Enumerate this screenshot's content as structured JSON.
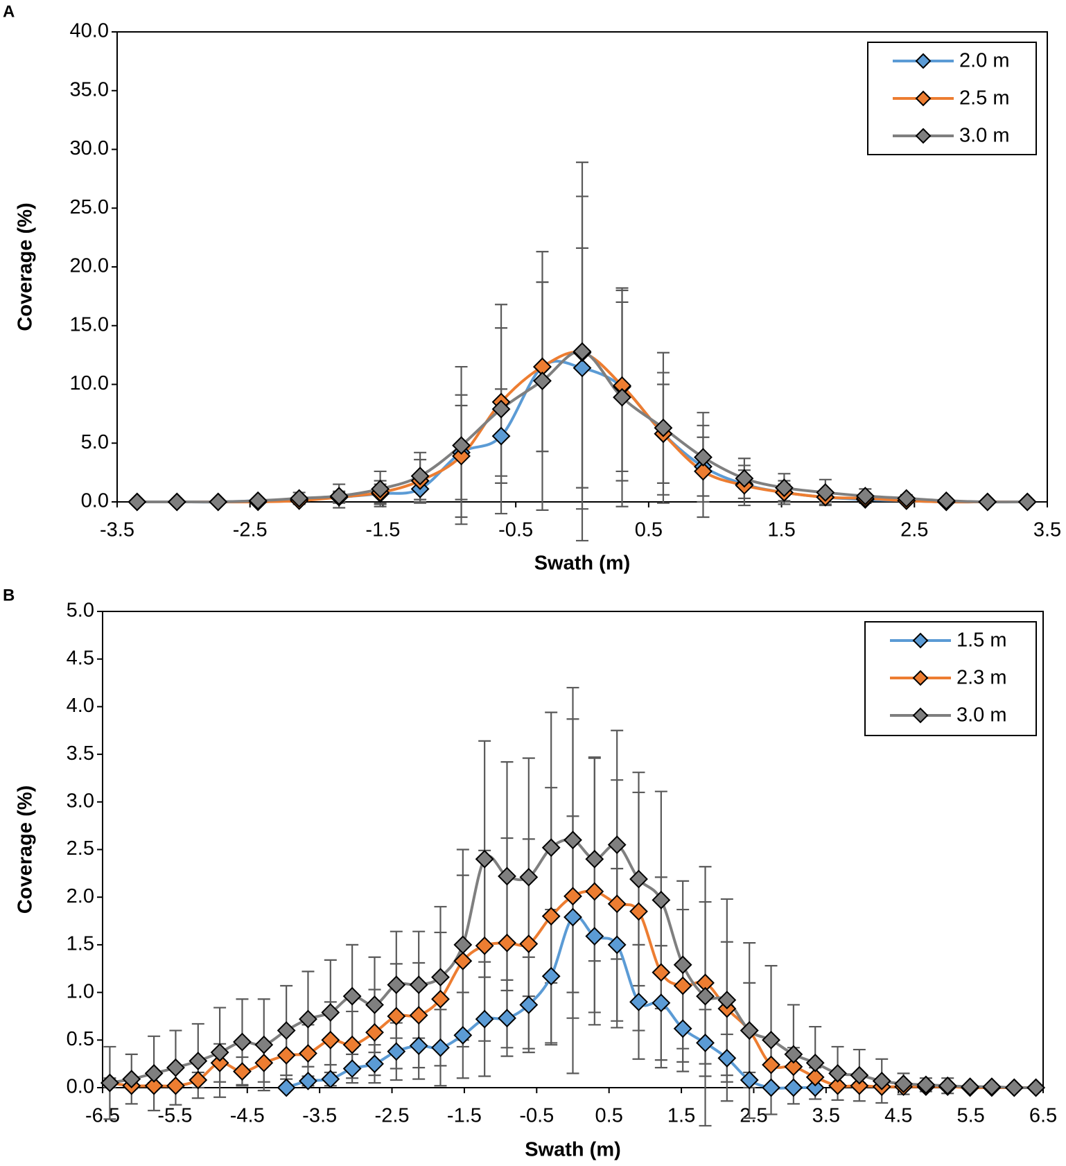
{
  "chart_data": [
    {
      "type": "line",
      "panel_label": "A",
      "xlabel": "Swath (m)",
      "ylabel": "Coverage (%)",
      "smooth": true,
      "x": [
        -3.35,
        -3.05,
        -2.74,
        -2.44,
        -2.13,
        -1.83,
        -1.52,
        -1.22,
        -0.91,
        -0.61,
        -0.3,
        0,
        0.3,
        0.61,
        0.91,
        1.22,
        1.52,
        1.83,
        2.13,
        2.44,
        2.74,
        3.05,
        3.35
      ],
      "xlim": [
        -3.5,
        3.5
      ],
      "xticks": [
        -3.5,
        -2.5,
        -1.5,
        -0.5,
        0.5,
        1.5,
        2.5,
        3.5
      ],
      "ylim": [
        0,
        40
      ],
      "yticks": [
        {
          "value": 0,
          "label": "0.0"
        },
        {
          "value": 5,
          "label": "5.0"
        },
        {
          "value": 10,
          "label": "10.0"
        },
        {
          "value": 15,
          "label": "15.0"
        },
        {
          "value": 20,
          "label": "20.0"
        },
        {
          "value": 25,
          "label": "25.0"
        },
        {
          "value": 30,
          "label": "30.0"
        },
        {
          "value": 35,
          "label": "35.0"
        },
        {
          "value": 40,
          "label": "40.0"
        }
      ],
      "legend": "upper right",
      "series": [
        {
          "name": "2.0 m",
          "color": "#5b9bd5",
          "values": [
            0,
            0,
            0,
            0.1,
            0.2,
            0.4,
            0.7,
            1.1,
            4.2,
            5.6,
            11.5,
            11.4,
            9.8,
            5.8,
            3.0,
            1.5,
            0.8,
            0.4,
            0.2,
            0.1,
            0,
            0,
            0
          ],
          "errors": [
            0,
            0,
            0,
            0.1,
            0.3,
            0.4,
            0.8,
            1.2,
            4.0,
            4.0,
            7.2,
            10.2,
            7.2,
            4.2,
            2.5,
            1.2,
            0.7,
            0.4,
            0.3,
            0.1,
            0,
            0,
            0
          ]
        },
        {
          "name": "2.5 m",
          "color": "#ed7d31",
          "values": [
            0,
            0,
            0,
            0,
            0.1,
            0.4,
            0.8,
            1.8,
            3.9,
            8.5,
            11.5,
            12.7,
            9.9,
            5.8,
            2.6,
            1.4,
            0.8,
            0.4,
            0.3,
            0.1,
            0,
            0,
            0
          ],
          "errors": [
            0,
            0,
            0,
            0,
            0.2,
            0.5,
            1.0,
            1.8,
            5.2,
            6.3,
            7.2,
            13.3,
            8.1,
            5.2,
            3.9,
            1.7,
            1.0,
            0.6,
            0.4,
            0.2,
            0,
            0,
            0
          ]
        },
        {
          "name": "3.0 m",
          "color": "#7f7f7f",
          "values": [
            0,
            0,
            0,
            0.1,
            0.3,
            0.5,
            1.1,
            2.2,
            4.8,
            7.9,
            10.3,
            12.8,
            8.9,
            6.3,
            3.8,
            2.0,
            1.2,
            0.8,
            0.5,
            0.3,
            0.1,
            0,
            0
          ],
          "errors": [
            0,
            0,
            0,
            0.1,
            0.5,
            1.0,
            1.5,
            2.0,
            6.7,
            8.9,
            11.0,
            16.1,
            9.3,
            6.4,
            3.8,
            1.7,
            1.2,
            1.1,
            0.6,
            0.3,
            0.1,
            0,
            0
          ]
        }
      ]
    },
    {
      "type": "line",
      "panel_label": "B",
      "xlabel": "Swath (m)",
      "ylabel": "Coverage (%)",
      "smooth": true,
      "x": [
        -6.4,
        -6.1,
        -5.79,
        -5.49,
        -5.18,
        -4.88,
        -4.57,
        -4.27,
        -3.96,
        -3.66,
        -3.35,
        -3.05,
        -2.74,
        -2.44,
        -2.13,
        -1.83,
        -1.52,
        -1.22,
        -0.91,
        -0.61,
        -0.3,
        0,
        0.3,
        0.61,
        0.91,
        1.22,
        1.52,
        1.83,
        2.13,
        2.44,
        2.74,
        3.05,
        3.35,
        3.66,
        3.96,
        4.27,
        4.57,
        4.88,
        5.18,
        5.49,
        5.79,
        6.1,
        6.4
      ],
      "xlim": [
        -6.5,
        6.5
      ],
      "xticks": [
        -6.5,
        -5.5,
        -4.5,
        -3.5,
        -2.5,
        -1.5,
        -0.5,
        0.5,
        1.5,
        2.5,
        3.5,
        4.5,
        5.5,
        6.5
      ],
      "ylim": [
        0,
        5
      ],
      "yticks": [
        {
          "value": 0,
          "label": "0.0"
        },
        0.5,
        {
          "value": 1,
          "label": "1.0"
        },
        1.5,
        {
          "value": 2,
          "label": "2.0"
        },
        2.5,
        {
          "value": 3,
          "label": "3.0"
        },
        3.5,
        {
          "value": 4,
          "label": "4.0"
        },
        4.5,
        {
          "value": 5,
          "label": "5.0"
        }
      ],
      "legend": "upper right",
      "series": [
        {
          "name": "1.5 m",
          "color": "#5b9bd5",
          "values": [
            null,
            null,
            null,
            null,
            null,
            null,
            null,
            null,
            0,
            0.07,
            0.09,
            0.2,
            0.25,
            0.38,
            0.44,
            0.42,
            0.55,
            0.72,
            0.73,
            0.87,
            1.17,
            1.79,
            1.59,
            1.5,
            0.9,
            0.89,
            0.62,
            0.47,
            0.31,
            0.08,
            0,
            0,
            0,
            null,
            null,
            null,
            null,
            null,
            null,
            null,
            null,
            null,
            null
          ],
          "errors": [
            null,
            null,
            null,
            null,
            null,
            null,
            null,
            null,
            0,
            0.05,
            0.07,
            0.15,
            0.2,
            0.3,
            0.35,
            0.4,
            0.45,
            0.6,
            0.4,
            0.5,
            0.7,
            1.06,
            0.8,
            0.8,
            0.6,
            0.6,
            0.45,
            0.35,
            0.25,
            0.08,
            0,
            0,
            0,
            null,
            null,
            null,
            null,
            null,
            null,
            null,
            null,
            null,
            null
          ]
        },
        {
          "name": "2.3 m",
          "color": "#ed7d31",
          "values": [
            0.05,
            0.02,
            0.02,
            0.02,
            0.08,
            0.26,
            0.17,
            0.26,
            0.34,
            0.36,
            0.5,
            0.45,
            0.58,
            0.75,
            0.76,
            0.93,
            1.33,
            1.49,
            1.52,
            1.51,
            1.8,
            2.01,
            2.06,
            1.93,
            1.85,
            1.21,
            1.07,
            1.1,
            0.83,
            0.6,
            0.24,
            0.22,
            0.11,
            0.02,
            0.02,
            0.01,
            0.01,
            0.01,
            0.01,
            0,
            0,
            0,
            0
          ],
          "errors": [
            0.05,
            0.03,
            0.03,
            0.03,
            0.08,
            0.2,
            0.15,
            0.2,
            0.25,
            0.3,
            0.4,
            0.35,
            0.45,
            0.55,
            0.55,
            0.7,
            0.9,
            1.0,
            1.1,
            1.1,
            1.35,
            1.86,
            1.4,
            1.3,
            1.25,
            1.0,
            0.8,
            0.85,
            0.7,
            0.5,
            0.25,
            0.2,
            0.1,
            0.03,
            0.03,
            0.02,
            0.02,
            0.02,
            0.02,
            0.01,
            0.01,
            0.01,
            0.01
          ]
        },
        {
          "name": "3.0 m",
          "color": "#7f7f7f",
          "values": [
            0.05,
            0.09,
            0.15,
            0.21,
            0.28,
            0.37,
            0.48,
            0.45,
            0.6,
            0.72,
            0.79,
            0.96,
            0.87,
            1.08,
            1.08,
            1.16,
            1.5,
            2.4,
            2.22,
            2.21,
            2.52,
            2.6,
            2.4,
            2.55,
            2.19,
            1.97,
            1.29,
            0.96,
            0.92,
            0.6,
            0.5,
            0.35,
            0.26,
            0.15,
            0.13,
            0.07,
            0.04,
            0.03,
            0.02,
            0.01,
            0.01,
            0,
            0
          ],
          "errors": [
            0.38,
            0.26,
            0.39,
            0.39,
            0.39,
            0.47,
            0.45,
            0.48,
            0.47,
            0.5,
            0.55,
            0.54,
            0.5,
            0.56,
            0.56,
            0.74,
            1.0,
            1.24,
            1.2,
            1.25,
            1.42,
            1.6,
            1.07,
            1.2,
            1.12,
            1.14,
            0.88,
            1.36,
            1.06,
            0.92,
            0.78,
            0.52,
            0.38,
            0.28,
            0.27,
            0.23,
            0.11,
            0.07,
            0.08,
            0.02,
            0.02,
            0.02,
            0.02
          ]
        }
      ]
    }
  ]
}
